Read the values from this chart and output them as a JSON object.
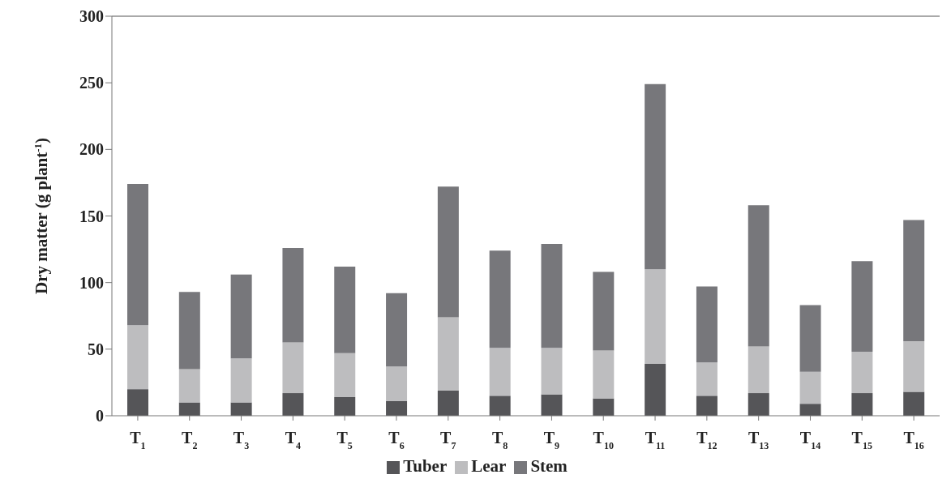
{
  "chart_data": {
    "type": "bar",
    "stacked": true,
    "ylabel": "Dry matter (g plant$^{-1}$)",
    "categories": [
      "T$_{1}$",
      "T$_{2}$",
      "T$_{3}$",
      "T$_{4}$",
      "T$_{5}$",
      "T$_{6}$",
      "T$_{7}$",
      "T$_{8}$",
      "T$_{9}$",
      "T$_{10}$",
      "T$_{11}$",
      "T$_{12}$",
      "T$_{13}$",
      "T$_{14}$",
      "T$_{15}$",
      "T$_{16}$"
    ],
    "series": [
      {
        "name": "Tuber",
        "color": "#555558",
        "values": [
          20,
          10,
          10,
          17,
          14,
          11,
          19,
          15,
          16,
          13,
          39,
          15,
          17,
          9,
          17,
          18
        ]
      },
      {
        "name": "Lear",
        "color": "#bdbdbf",
        "values": [
          48,
          25,
          33,
          38,
          33,
          26,
          55,
          36,
          35,
          36,
          71,
          25,
          35,
          24,
          31,
          38
        ]
      },
      {
        "name": "Stem",
        "color": "#77777b",
        "values": [
          106,
          58,
          63,
          71,
          65,
          55,
          98,
          73,
          78,
          59,
          139,
          57,
          106,
          50,
          68,
          91
        ]
      }
    ],
    "ylim": [
      0,
      300
    ],
    "yticks": [
      0,
      50,
      100,
      150,
      200,
      250,
      300
    ],
    "legend": "bottom"
  }
}
